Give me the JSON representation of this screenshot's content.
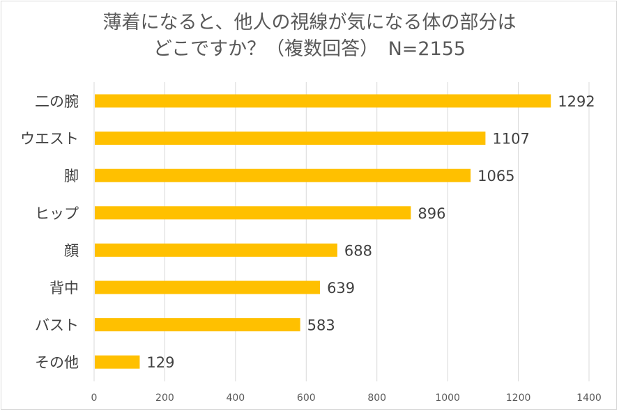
{
  "chart_data": {
    "type": "bar",
    "orientation": "horizontal",
    "title_line1": "薄着になると、他人の視線が気になる体の部分は",
    "title_line2": "どこですか？（複数回答）　N=2155",
    "categories": [
      "二の腕",
      "ウエスト",
      "脚",
      "ヒップ",
      "顔",
      "背中",
      "バスト",
      "その他"
    ],
    "values": [
      1292,
      1107,
      1065,
      896,
      688,
      639,
      583,
      129
    ],
    "xlim": [
      0,
      1400
    ],
    "xticks": [
      0,
      200,
      400,
      600,
      800,
      1000,
      1200,
      1400
    ],
    "grid": "vertical",
    "legend": "none",
    "bar_color": "#FFC000",
    "grid_color": "#D9D9D9"
  }
}
